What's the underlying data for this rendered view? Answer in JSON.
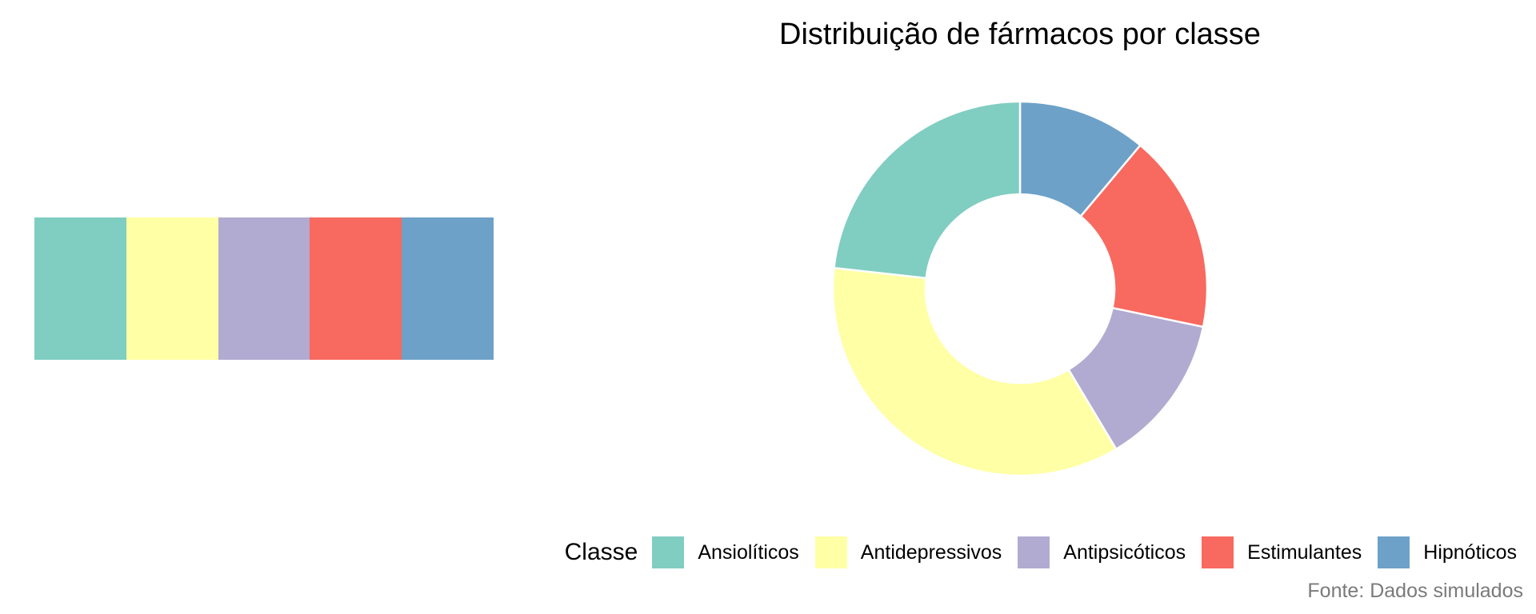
{
  "chart_data": {
    "type": "pie",
    "style": "donut",
    "title": "Distribuição de fármacos por classe",
    "caption": "Fonte: Dados simulados",
    "legend": {
      "title": "Classe",
      "position": "bottom"
    },
    "categories": [
      "Ansiolíticos",
      "Antidepressivos",
      "Antipsicóticos",
      "Estimulantes",
      "Hipnóticos"
    ],
    "values": [
      23,
      35,
      13,
      17,
      11
    ],
    "colors": [
      "#80CDC1",
      "#FFFFA6",
      "#B1ABD1",
      "#F8695F",
      "#6DA1C8"
    ],
    "grid": false
  },
  "palette_strip": {
    "colors": [
      "#80CDC1",
      "#FFFFA6",
      "#B1ABD1",
      "#F8695F",
      "#6DA1C8"
    ]
  }
}
